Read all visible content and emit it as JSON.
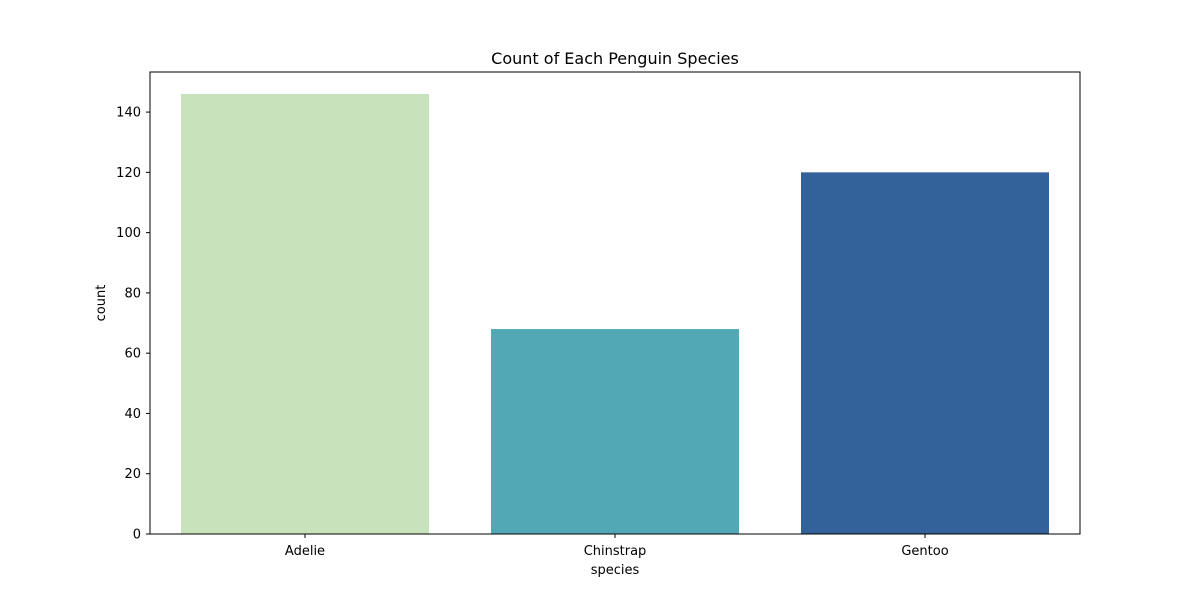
{
  "chart_data": {
    "type": "bar",
    "title": "Count of Each Penguin Species",
    "xlabel": "species",
    "ylabel": "count",
    "categories": [
      "Adelie",
      "Chinstrap",
      "Gentoo"
    ],
    "values": [
      146,
      68,
      120
    ],
    "colors": [
      "#c8e3bb",
      "#52a9b5",
      "#33619a"
    ],
    "ylim": [
      0,
      153.3
    ],
    "yticks": [
      0,
      20,
      40,
      60,
      80,
      100,
      120,
      140
    ],
    "grid": false,
    "legend": "none"
  }
}
